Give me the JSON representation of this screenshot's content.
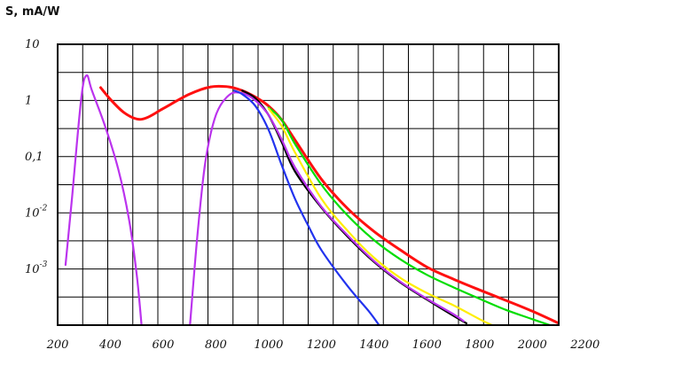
{
  "chart_data": {
    "type": "line",
    "title": "",
    "ylabel": "S, mA/W",
    "xlabel": "",
    "xlim": [
      200,
      2200
    ],
    "ylim": [
      0.0001,
      10
    ],
    "yscale": "log",
    "grid": true,
    "x_ticks": [
      "200",
      "400",
      "600",
      "800",
      "1000",
      "1200",
      "1400",
      "1600",
      "1800",
      "2000",
      "2200"
    ],
    "y_ticks": [
      {
        "value": 10,
        "label": "10",
        "exp": ""
      },
      {
        "value": 1,
        "label": "1",
        "exp": ""
      },
      {
        "value": 0.1,
        "label": "0,1",
        "exp": ""
      },
      {
        "value": 0.01,
        "label": "10",
        "exp": "-2"
      },
      {
        "value": 0.001,
        "label": "10",
        "exp": "-3"
      }
    ],
    "series": [
      {
        "color": "#ff1010",
        "points": [
          [
            363,
            1.7
          ],
          [
            400,
            1.05
          ],
          [
            450,
            0.62
          ],
          [
            500,
            0.47
          ],
          [
            540,
            0.5
          ],
          [
            600,
            0.72
          ],
          [
            700,
            1.3
          ],
          [
            780,
            1.75
          ],
          [
            850,
            1.75
          ],
          [
            900,
            1.5
          ],
          [
            950,
            1.15
          ],
          [
            1000,
            0.8
          ],
          [
            1050,
            0.45
          ],
          [
            1100,
            0.2
          ],
          [
            1200,
            0.04
          ],
          [
            1300,
            0.012
          ],
          [
            1400,
            0.0047
          ],
          [
            1500,
            0.0022
          ],
          [
            1600,
            0.0011
          ],
          [
            1700,
            0.00067
          ],
          [
            1800,
            0.00043
          ],
          [
            1900,
            0.00028
          ],
          [
            2000,
            0.00018
          ],
          [
            2100,
            0.00011
          ]
        ]
      },
      {
        "color": "#00dd00",
        "points": [
          [
            1000,
            0.75
          ],
          [
            1050,
            0.45
          ],
          [
            1100,
            0.17
          ],
          [
            1200,
            0.032
          ],
          [
            1300,
            0.009
          ],
          [
            1400,
            0.0033
          ],
          [
            1500,
            0.0015
          ],
          [
            1600,
            0.0008
          ],
          [
            1700,
            0.00048
          ],
          [
            1800,
            0.0003
          ],
          [
            1900,
            0.00019
          ],
          [
            2000,
            0.00013
          ],
          [
            2100,
            9e-05
          ]
        ]
      },
      {
        "color": "#ffee00",
        "points": [
          [
            1000,
            0.72
          ],
          [
            1050,
            0.35
          ],
          [
            1100,
            0.12
          ],
          [
            1200,
            0.018
          ],
          [
            1300,
            0.0048
          ],
          [
            1400,
            0.0016
          ],
          [
            1500,
            0.0007
          ],
          [
            1600,
            0.00038
          ],
          [
            1700,
            0.00023
          ],
          [
            1800,
            0.00013
          ],
          [
            1850,
            0.0001
          ]
        ]
      },
      {
        "color": "#000000",
        "points": [
          [
            900,
            1.5
          ],
          [
            950,
            1.1
          ],
          [
            1000,
            0.55
          ],
          [
            1050,
            0.18
          ],
          [
            1100,
            0.055
          ],
          [
            1200,
            0.0125
          ],
          [
            1300,
            0.0038
          ],
          [
            1400,
            0.00135
          ],
          [
            1500,
            0.00058
          ],
          [
            1600,
            0.00029
          ],
          [
            1700,
            0.00015
          ],
          [
            1750,
            0.00011
          ]
        ]
      },
      {
        "color": "#bb33ee",
        "points": [
          [
            230,
            0.0012
          ],
          [
            255,
            0.02
          ],
          [
            290,
            1.15
          ],
          [
            310,
            2.8
          ],
          [
            330,
            1.5
          ],
          [
            380,
            0.35
          ],
          [
            430,
            0.06
          ],
          [
            470,
            0.008
          ],
          [
            500,
            0.0008
          ],
          [
            520,
            8e-05
          ]
        ]
      },
      {
        "color": "#bb33ee",
        "points": [
          [
            700,
            8e-05
          ],
          [
            730,
            0.004
          ],
          [
            760,
            0.08
          ],
          [
            800,
            0.55
          ],
          [
            850,
            1.25
          ],
          [
            900,
            1.35
          ],
          [
            950,
            1.0
          ],
          [
            1000,
            0.55
          ],
          [
            1050,
            0.2
          ],
          [
            1100,
            0.065
          ],
          [
            1200,
            0.013
          ],
          [
            1300,
            0.004
          ],
          [
            1400,
            0.0014
          ],
          [
            1500,
            0.0006
          ],
          [
            1600,
            0.0003
          ],
          [
            1700,
            0.00016
          ],
          [
            1740,
            0.00012
          ]
        ]
      },
      {
        "color": "#2233ee",
        "points": [
          [
            870,
            1.5
          ],
          [
            900,
            1.3
          ],
          [
            950,
            0.8
          ],
          [
            1000,
            0.3
          ],
          [
            1050,
            0.07
          ],
          [
            1100,
            0.018
          ],
          [
            1150,
            0.006
          ],
          [
            1200,
            0.0022
          ],
          [
            1300,
            0.0005
          ],
          [
            1380,
            0.00018
          ],
          [
            1420,
            0.0001
          ]
        ]
      }
    ]
  }
}
